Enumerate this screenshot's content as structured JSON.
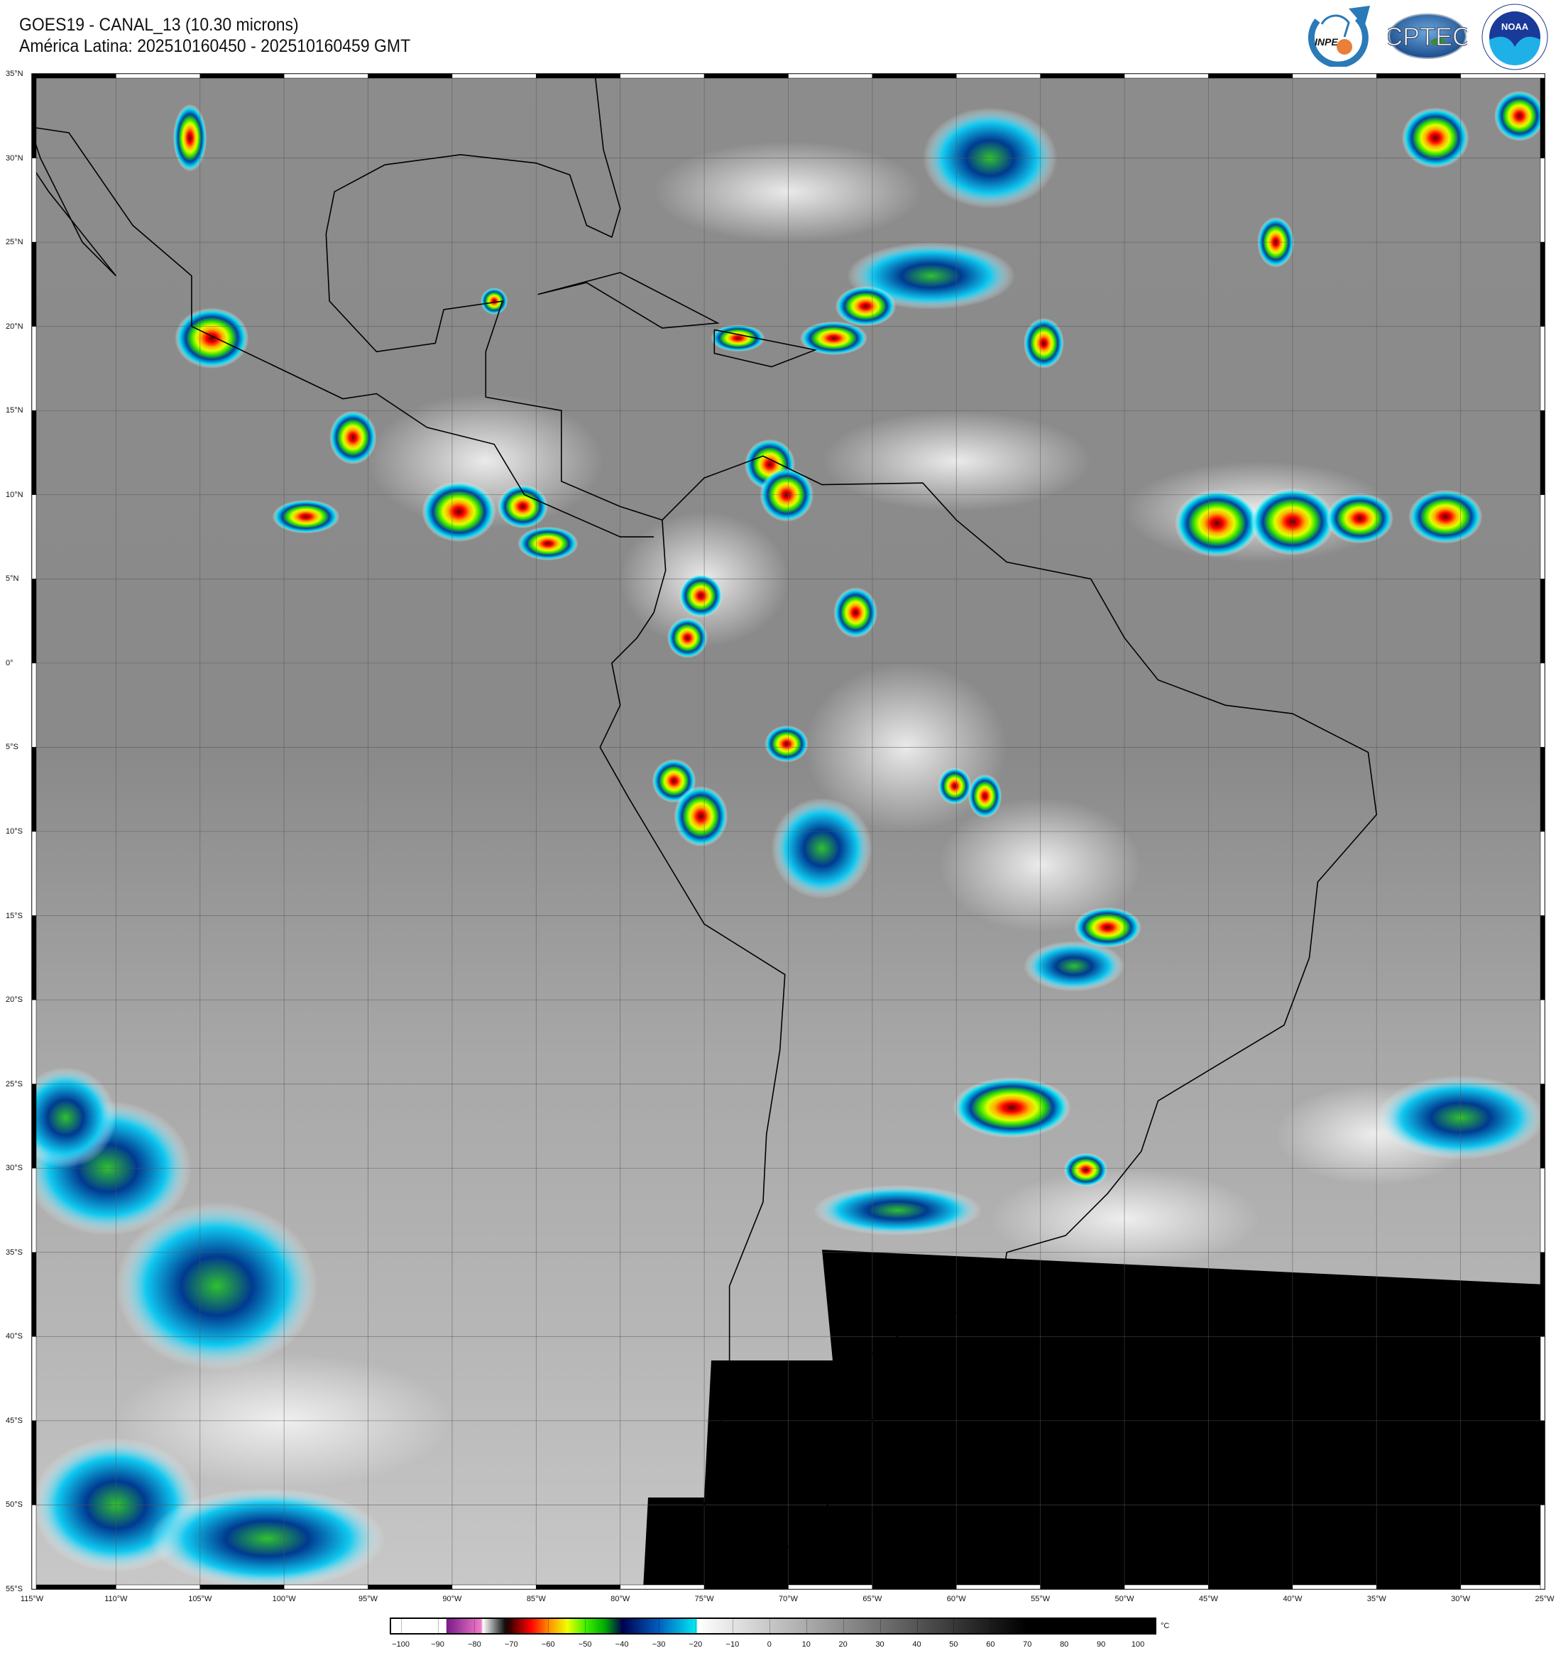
{
  "header": {
    "title_line1": "GOES19 - CANAL_13 (10.30 microns)",
    "title_line2": "América Latina: 202510160450 - 202510160459 GMT"
  },
  "logos": [
    {
      "name": "INPE",
      "text": "INPE"
    },
    {
      "name": "CPTEC",
      "text": "CPTEC"
    },
    {
      "name": "NOAA",
      "text": "NOAA",
      "ring_text": "NATIONAL OCEANIC AND ATMOSPHERIC ADMINISTRATION · U.S. DEPARTMENT OF COMMERCE"
    }
  ],
  "map": {
    "projection": "equirectangular",
    "lon_range": [
      -115,
      -25
    ],
    "lat_range": [
      -55,
      35
    ],
    "grid_step_deg": 5,
    "no_data_color": "#000000",
    "lat_labels": [
      "35°N",
      "30°N",
      "25°N",
      "20°N",
      "15°N",
      "10°N",
      "5°N",
      "0°",
      "5°S",
      "10°S",
      "15°S",
      "20°S",
      "25°S",
      "30°S",
      "35°S",
      "40°S",
      "45°S",
      "50°S",
      "55°S"
    ],
    "lon_labels": [
      "115°W",
      "110°W",
      "105°W",
      "100°W",
      "95°W",
      "90°W",
      "85°W",
      "80°W",
      "75°W",
      "70°W",
      "65°W",
      "60°W",
      "55°W",
      "50°W",
      "45°W",
      "40°W",
      "35°W",
      "30°W",
      "25°W"
    ]
  },
  "colorbar": {
    "unit": "°C",
    "ticks": [
      "−100",
      "−90",
      "−80",
      "−70",
      "−60",
      "−50",
      "−40",
      "−30",
      "−20",
      "−10",
      "0",
      "10",
      "20",
      "30",
      "40",
      "50",
      "60",
      "70",
      "80",
      "90",
      "100"
    ],
    "tick_values": [
      -100,
      -90,
      -80,
      -70,
      -60,
      -50,
      -40,
      -30,
      -20,
      -10,
      0,
      10,
      20,
      30,
      40,
      50,
      60,
      70,
      80,
      90,
      100
    ],
    "range": [
      -103,
      105
    ],
    "stops": [
      {
        "v": -103,
        "c": "#ffffff"
      },
      {
        "v": -88,
        "c": "#ffffff"
      },
      {
        "v": -87.9,
        "c": "#7a1a8a"
      },
      {
        "v": -78.5,
        "c": "#f07ac8"
      },
      {
        "v": -78,
        "c": "#ffffff"
      },
      {
        "v": -72,
        "c": "#101010"
      },
      {
        "v": -71,
        "c": "#300000"
      },
      {
        "v": -65,
        "c": "#ff0000"
      },
      {
        "v": -60,
        "c": "#ff9000"
      },
      {
        "v": -55,
        "c": "#f0ff00"
      },
      {
        "v": -50,
        "c": "#40f000"
      },
      {
        "v": -45,
        "c": "#00b000"
      },
      {
        "v": -40,
        "c": "#000050"
      },
      {
        "v": -30,
        "c": "#0060c0"
      },
      {
        "v": -20,
        "c": "#00e8f0"
      },
      {
        "v": -19.5,
        "c": "#ffffff"
      },
      {
        "v": 70,
        "c": "#000000"
      },
      {
        "v": 105,
        "c": "#000000"
      }
    ]
  }
}
